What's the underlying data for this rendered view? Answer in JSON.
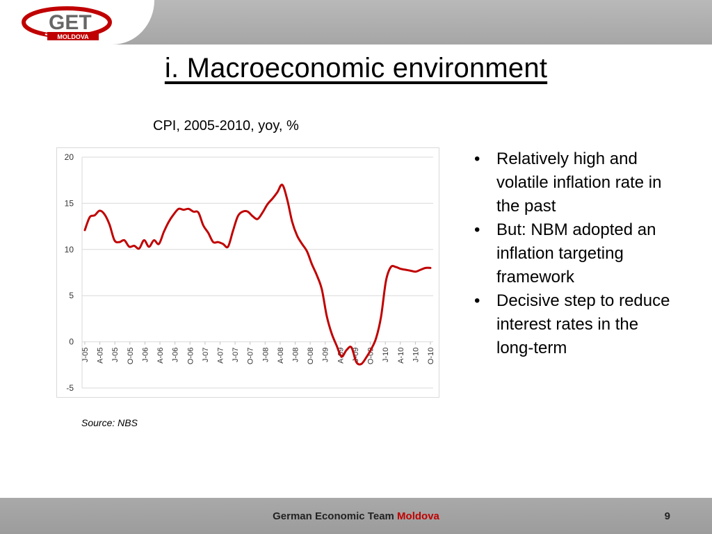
{
  "header": {
    "logo_text": "GET",
    "logo_sub": "MOLDOVA",
    "title": "i. Macroeconomic environment"
  },
  "chart_title": "CPI, 2005-2010, yoy, %",
  "source": "Source: NBS",
  "bullets": [
    "Relatively high and volatile inflation rate in the past",
    "But: NBM adopted an inflation targeting framework",
    "Decisive step to reduce interest rates in the long-term"
  ],
  "footer": {
    "text_main": "German Economic Team ",
    "text_accent": "Moldova",
    "page_number": "9"
  },
  "colors": {
    "line": "#c00000",
    "accent": "#c00000"
  },
  "chart_data": {
    "type": "line",
    "title": "CPI, 2005-2010, yoy, %",
    "xlabel": "",
    "ylabel": "",
    "ylim": [
      -5,
      20
    ],
    "yticks": [
      -5,
      0,
      5,
      10,
      15,
      20
    ],
    "grid": true,
    "x_tick_labels": [
      "J-05",
      "A-05",
      "J-05",
      "O-05",
      "J-06",
      "A-06",
      "J-06",
      "O-06",
      "J-07",
      "A-07",
      "J-07",
      "O-07",
      "J-08",
      "A-08",
      "J-08",
      "O-08",
      "J-09",
      "A-09",
      "J-09",
      "O-09",
      "J-10",
      "A-10",
      "J-10",
      "O-10"
    ],
    "series": [
      {
        "values": [
          12.1,
          13.5,
          13.7,
          14.2,
          13.8,
          12.7,
          11.0,
          10.8,
          11.0,
          10.3,
          10.4,
          10.1,
          11.0,
          10.3,
          11.0,
          10.6,
          11.9,
          13.0,
          13.8,
          14.4,
          14.3,
          14.4,
          14.1,
          14.0,
          12.6,
          11.8,
          10.8,
          10.8,
          10.6,
          10.3,
          12.0,
          13.6,
          14.1,
          14.1,
          13.6,
          13.3,
          14.0,
          14.9,
          15.5,
          16.2,
          17.0,
          15.4,
          13.0,
          11.5,
          10.6,
          9.8,
          8.4,
          7.2,
          5.7,
          2.8,
          0.9,
          -0.4,
          -1.6,
          -0.9,
          -0.6,
          -2.2,
          -2.4,
          -1.7,
          -0.8,
          0.4,
          2.7,
          6.6,
          8.1,
          8.1,
          7.9,
          7.8,
          7.7,
          7.6,
          7.8,
          8.0,
          8.0
        ]
      }
    ]
  }
}
